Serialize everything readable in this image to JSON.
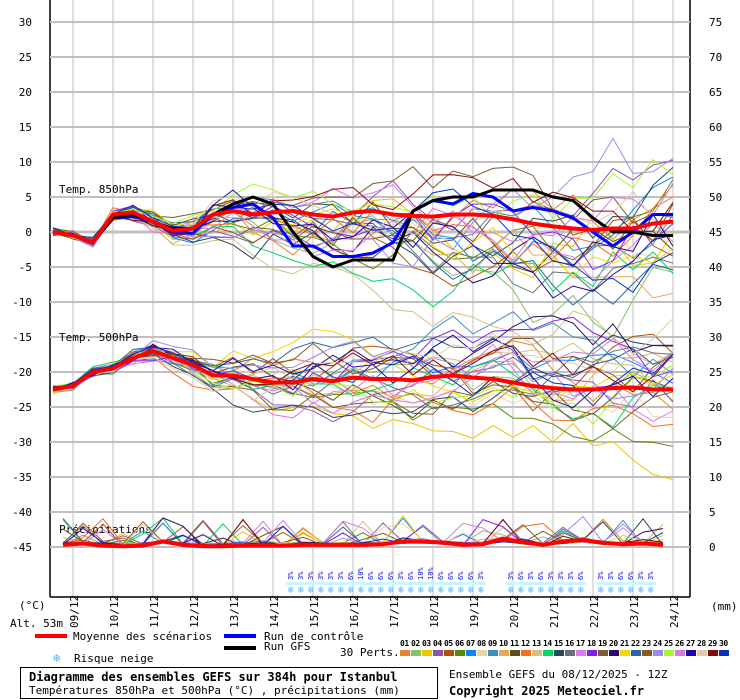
{
  "chart_data": {
    "type": "line",
    "title": "Diagramme des ensembles GEFS sur 384h pour Istanbul",
    "subtitle": "Températures 850hPa et 500hPa (°C) , précipitations (mm)",
    "run_info": "Ensemble GEFS du 08/12/2025 - 12Z",
    "copyright": "Copyright 2025 Meteociel.fr",
    "altitude": "Alt. 53m",
    "y_left": {
      "label": "(°C)",
      "ticks": [
        30,
        25,
        20,
        15,
        10,
        5,
        0,
        -5,
        -10,
        -15,
        -20,
        -25,
        -30,
        -35,
        -40,
        -45
      ],
      "range": [
        -50,
        32
      ]
    },
    "y_right": {
      "label": "(mm)",
      "ticks": [
        75,
        70,
        65,
        60,
        55,
        50,
        45,
        40,
        35,
        30,
        25,
        20,
        15,
        10,
        5,
        0
      ]
    },
    "x_ticks": [
      "09/12",
      "10/12",
      "11/12",
      "12/12",
      "13/12",
      "14/12",
      "15/12",
      "16/12",
      "17/12",
      "18/12",
      "19/12",
      "20/12",
      "21/12",
      "22/12",
      "23/12",
      "24/12"
    ],
    "panel_labels": [
      "Temp. 850hPa",
      "Temp. 500hPa",
      "Précipitations"
    ],
    "grid": true,
    "series": [
      {
        "name": "Moyenne des scénarios (850hPa)",
        "color": "#ff0000",
        "values": [
          0,
          -0.5,
          -1.5,
          2.5,
          2.8,
          1.5,
          0.2,
          0.5,
          2.5,
          3,
          2.5,
          2.8,
          3,
          2.5,
          2.2,
          2.8,
          3,
          2.5,
          2.3,
          2.2,
          2.5,
          2.5,
          2.3,
          1.8,
          1.2,
          0.8,
          0.5,
          0.3,
          0.5,
          0.5,
          1.2,
          1.5
        ]
      },
      {
        "name": "Run de contrôle (850hPa)",
        "color": "#0000ff",
        "values": [
          0,
          -0.5,
          -1.5,
          2,
          2.2,
          1.5,
          0,
          -0.2,
          2.5,
          3.5,
          4,
          2,
          -2,
          -2,
          -3.5,
          -3.5,
          -3,
          -1.5,
          3,
          4.5,
          4,
          5.5,
          5,
          3,
          3.5,
          3,
          2,
          0,
          -2,
          0,
          2.5,
          2.5
        ]
      },
      {
        "name": "Run GFS (850hPa)",
        "color": "#000000",
        "values": [
          0,
          -0.5,
          -1.5,
          2,
          2.5,
          1.5,
          0.5,
          0.5,
          2.5,
          4,
          5,
          4,
          0,
          -3.5,
          -5,
          -4,
          -4,
          -4,
          3,
          4.5,
          5,
          5,
          6,
          6,
          6,
          5,
          4.5,
          2,
          0,
          0,
          -0.5,
          -0.5
        ]
      },
      {
        "name": "Moyenne des scénarios (500hPa)",
        "color": "#ff0000",
        "values": [
          -22.5,
          -22,
          -20,
          -19.5,
          -18,
          -17,
          -18,
          -19,
          -20.5,
          -20.5,
          -21,
          -21.5,
          -21.5,
          -21,
          -21.3,
          -20.8,
          -21,
          -21,
          -21.2,
          -20.7,
          -20.5,
          -20.8,
          -21,
          -21.5,
          -22,
          -22.3,
          -22.5,
          -22.5,
          -22.3,
          -22.2,
          -22.5,
          -22.5
        ]
      },
      {
        "name": "Moyenne des scénarios (précipitations mm)",
        "color": "#ff0000",
        "values": [
          0.3,
          0.5,
          0.2,
          0.1,
          0.2,
          0.8,
          0.3,
          0.1,
          0.1,
          0.2,
          0.2,
          0.2,
          0.3,
          0.3,
          0.3,
          0.3,
          0.4,
          0.8,
          0.8,
          0.6,
          0.3,
          0.4,
          1.2,
          0.7,
          0.3,
          0.8,
          1.0,
          0.6,
          0.4,
          0.5,
          0.3
        ]
      }
    ],
    "ensemble_members": 30
  },
  "legend": {
    "mean_label": "Moyenne des scénarios",
    "control_label": "Run de contrôle",
    "gfs_label": "Run GFS",
    "snow_label": "Risque neige",
    "perts_label": "30 Perts.",
    "mean_color": "#ff0000",
    "control_color": "#0000ff",
    "gfs_color": "#000000"
  },
  "perturbations": [
    {
      "id": "01",
      "color": "#e8842c"
    },
    {
      "id": "02",
      "color": "#86c26a"
    },
    {
      "id": "03",
      "color": "#f0c400"
    },
    {
      "id": "04",
      "color": "#8e55a8"
    },
    {
      "id": "05",
      "color": "#b0520c"
    },
    {
      "id": "06",
      "color": "#5a8a00"
    },
    {
      "id": "07",
      "color": "#0a84ff"
    },
    {
      "id": "08",
      "color": "#e8d4b0"
    },
    {
      "id": "09",
      "color": "#3c8ec0"
    },
    {
      "id": "10",
      "color": "#e8a858"
    },
    {
      "id": "11",
      "color": "#604c1c"
    },
    {
      "id": "12",
      "color": "#f86c1c"
    },
    {
      "id": "13",
      "color": "#d4c080"
    },
    {
      "id": "14",
      "color": "#00d860"
    },
    {
      "id": "15",
      "color": "#284860"
    },
    {
      "id": "16",
      "color": "#687078"
    },
    {
      "id": "17",
      "color": "#e078f0"
    },
    {
      "id": "18",
      "color": "#8020f0"
    },
    {
      "id": "19",
      "color": "#7c5c30"
    },
    {
      "id": "20",
      "color": "#30086c"
    },
    {
      "id": "21",
      "color": "#f0d800"
    },
    {
      "id": "22",
      "color": "#2c64a0"
    },
    {
      "id": "23",
      "color": "#8c5820"
    },
    {
      "id": "24",
      "color": "#9c88f0"
    },
    {
      "id": "25",
      "color": "#a8f830"
    },
    {
      "id": "26",
      "color": "#d878d8"
    },
    {
      "id": "27",
      "color": "#2008a8"
    },
    {
      "id": "28",
      "color": "#e0cca8"
    },
    {
      "id": "29",
      "color": "#880808"
    },
    {
      "id": "30",
      "color": "#0830c0"
    }
  ],
  "snow_risk": {
    "groups": [
      [
        "3%",
        "3%",
        "3%",
        "3%",
        "3%",
        "3%",
        "6%",
        "10%",
        "6%",
        "6%",
        "6%",
        "3%",
        "6%",
        "10%",
        "10%",
        "6%",
        "6%",
        "6%",
        "6%",
        "3%"
      ],
      [
        "3%",
        "6%",
        "3%",
        "6%",
        "3%",
        "3%",
        "3%",
        "6%"
      ],
      [
        "3%",
        "3%",
        "6%",
        "6%",
        "3%",
        "3%"
      ]
    ]
  }
}
